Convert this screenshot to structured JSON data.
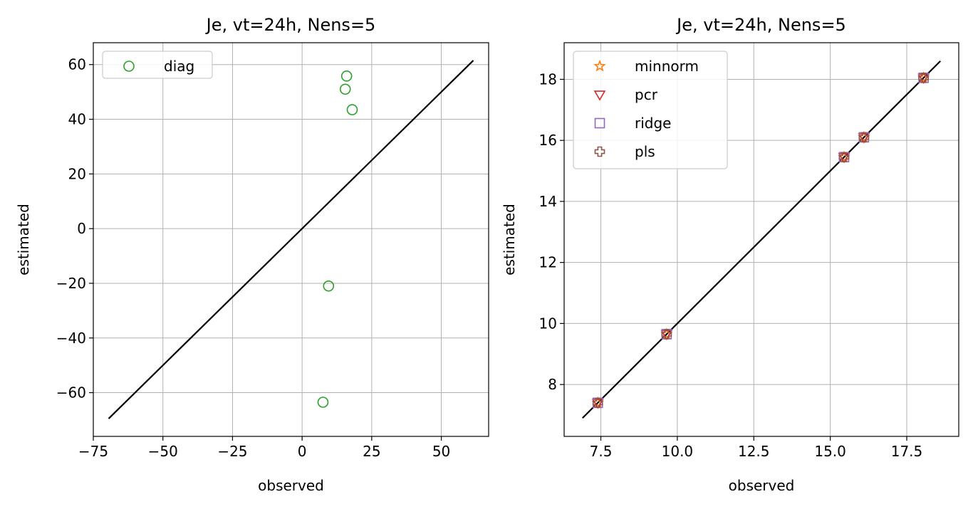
{
  "chart_data": [
    {
      "type": "scatter",
      "title": "Je, vt=24h, Nens=5",
      "xlabel": "observed",
      "ylabel": "estimated",
      "xlim": [
        -75,
        67
      ],
      "ylim": [
        -76,
        68
      ],
      "xticks": [
        -75,
        -50,
        -25,
        0,
        25,
        50
      ],
      "yticks": [
        -60,
        -40,
        -20,
        0,
        20,
        40,
        60
      ],
      "xtick_labels": [
        "−75",
        "−50",
        "−25",
        "0",
        "25",
        "50"
      ],
      "ytick_labels": [
        "−60",
        "−40",
        "−20",
        "0",
        "20",
        "40",
        "60"
      ],
      "grid": true,
      "legend_position": "upper-left",
      "reference_line": {
        "x": [
          -69.5,
          61.5
        ],
        "y": [
          -69.5,
          61.5
        ],
        "color": "#000000"
      },
      "series": [
        {
          "name": "diag",
          "marker": "circle",
          "color": "#2ca02c",
          "x": [
            7.5,
            9.5,
            15.5,
            16.0,
            18.0
          ],
          "y": [
            -63.5,
            -21.0,
            51.0,
            55.8,
            43.5
          ]
        }
      ]
    },
    {
      "type": "scatter",
      "title": "Je, vt=24h, Nens=5",
      "xlabel": "observed",
      "ylabel": "estimated",
      "xlim": [
        6.3,
        19.2
      ],
      "ylim": [
        6.3,
        19.2
      ],
      "xticks": [
        7.5,
        10.0,
        12.5,
        15.0,
        17.5
      ],
      "yticks": [
        8,
        10,
        12,
        14,
        16,
        18
      ],
      "xtick_labels": [
        "7.5",
        "10.0",
        "12.5",
        "15.0",
        "17.5"
      ],
      "ytick_labels": [
        "8",
        "10",
        "12",
        "14",
        "16",
        "18"
      ],
      "grid": true,
      "legend_position": "upper-left",
      "reference_line": {
        "x": [
          6.9,
          18.6
        ],
        "y": [
          6.9,
          18.6
        ],
        "color": "#000000"
      },
      "series": [
        {
          "name": "minnorm",
          "marker": "star",
          "color": "#ff7f0e",
          "x": [
            7.4,
            9.65,
            15.45,
            16.1,
            18.05
          ],
          "y": [
            7.4,
            9.65,
            15.45,
            16.1,
            18.05
          ]
        },
        {
          "name": "pcr",
          "marker": "triangle-down",
          "color": "#d62728",
          "x": [
            7.4,
            9.65,
            15.45,
            16.1,
            18.05
          ],
          "y": [
            7.4,
            9.65,
            15.45,
            16.1,
            18.05
          ]
        },
        {
          "name": "ridge",
          "marker": "square",
          "color": "#9467bd",
          "x": [
            7.4,
            9.65,
            15.45,
            16.1,
            18.05
          ],
          "y": [
            7.4,
            9.65,
            15.45,
            16.1,
            18.05
          ]
        },
        {
          "name": "pls",
          "marker": "plus",
          "color": "#8c564b",
          "x": [
            7.4,
            9.65,
            15.45,
            16.1,
            18.05
          ],
          "y": [
            7.4,
            9.65,
            15.45,
            16.1,
            18.05
          ]
        }
      ]
    }
  ]
}
